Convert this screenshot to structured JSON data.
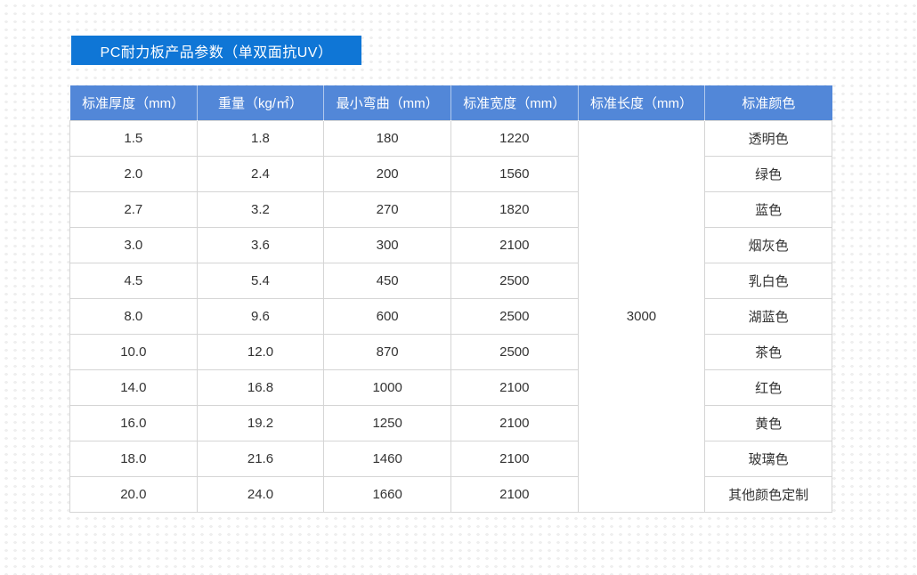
{
  "banner": {
    "title": "PC耐力板产品参数（单双面抗UV）",
    "bg_color": "#0f76d6",
    "text_color": "#ffffff"
  },
  "table": {
    "header_bg_color": "#5287d8",
    "header_text_color": "#ffffff",
    "border_color": "#d5d5d5",
    "cell_text_color": "#333333",
    "headers": [
      "标准厚度（mm）",
      "重量（kg/㎡）",
      "最小弯曲（mm）",
      "标准宽度（mm）",
      "标准长度（mm）",
      "标准颜色"
    ],
    "length_value": "3000",
    "rows": [
      {
        "thickness": "1.5",
        "weight": "1.8",
        "min_bend": "180",
        "width": "1220",
        "color": "透明色"
      },
      {
        "thickness": "2.0",
        "weight": "2.4",
        "min_bend": "200",
        "width": "1560",
        "color": "绿色"
      },
      {
        "thickness": "2.7",
        "weight": "3.2",
        "min_bend": "270",
        "width": "1820",
        "color": "蓝色"
      },
      {
        "thickness": "3.0",
        "weight": "3.6",
        "min_bend": "300",
        "width": "2100",
        "color": "烟灰色"
      },
      {
        "thickness": "4.5",
        "weight": "5.4",
        "min_bend": "450",
        "width": "2500",
        "color": "乳白色"
      },
      {
        "thickness": "8.0",
        "weight": "9.6",
        "min_bend": "600",
        "width": "2500",
        "color": "湖蓝色"
      },
      {
        "thickness": "10.0",
        "weight": "12.0",
        "min_bend": "870",
        "width": "2500",
        "color": "茶色"
      },
      {
        "thickness": "14.0",
        "weight": "16.8",
        "min_bend": "1000",
        "width": "2100",
        "color": "红色"
      },
      {
        "thickness": "16.0",
        "weight": "19.2",
        "min_bend": "1250",
        "width": "2100",
        "color": "黄色"
      },
      {
        "thickness": "18.0",
        "weight": "21.6",
        "min_bend": "1460",
        "width": "2100",
        "color": "玻璃色"
      },
      {
        "thickness": "20.0",
        "weight": "24.0",
        "min_bend": "1660",
        "width": "2100",
        "color": "其他颜色定制"
      }
    ]
  }
}
